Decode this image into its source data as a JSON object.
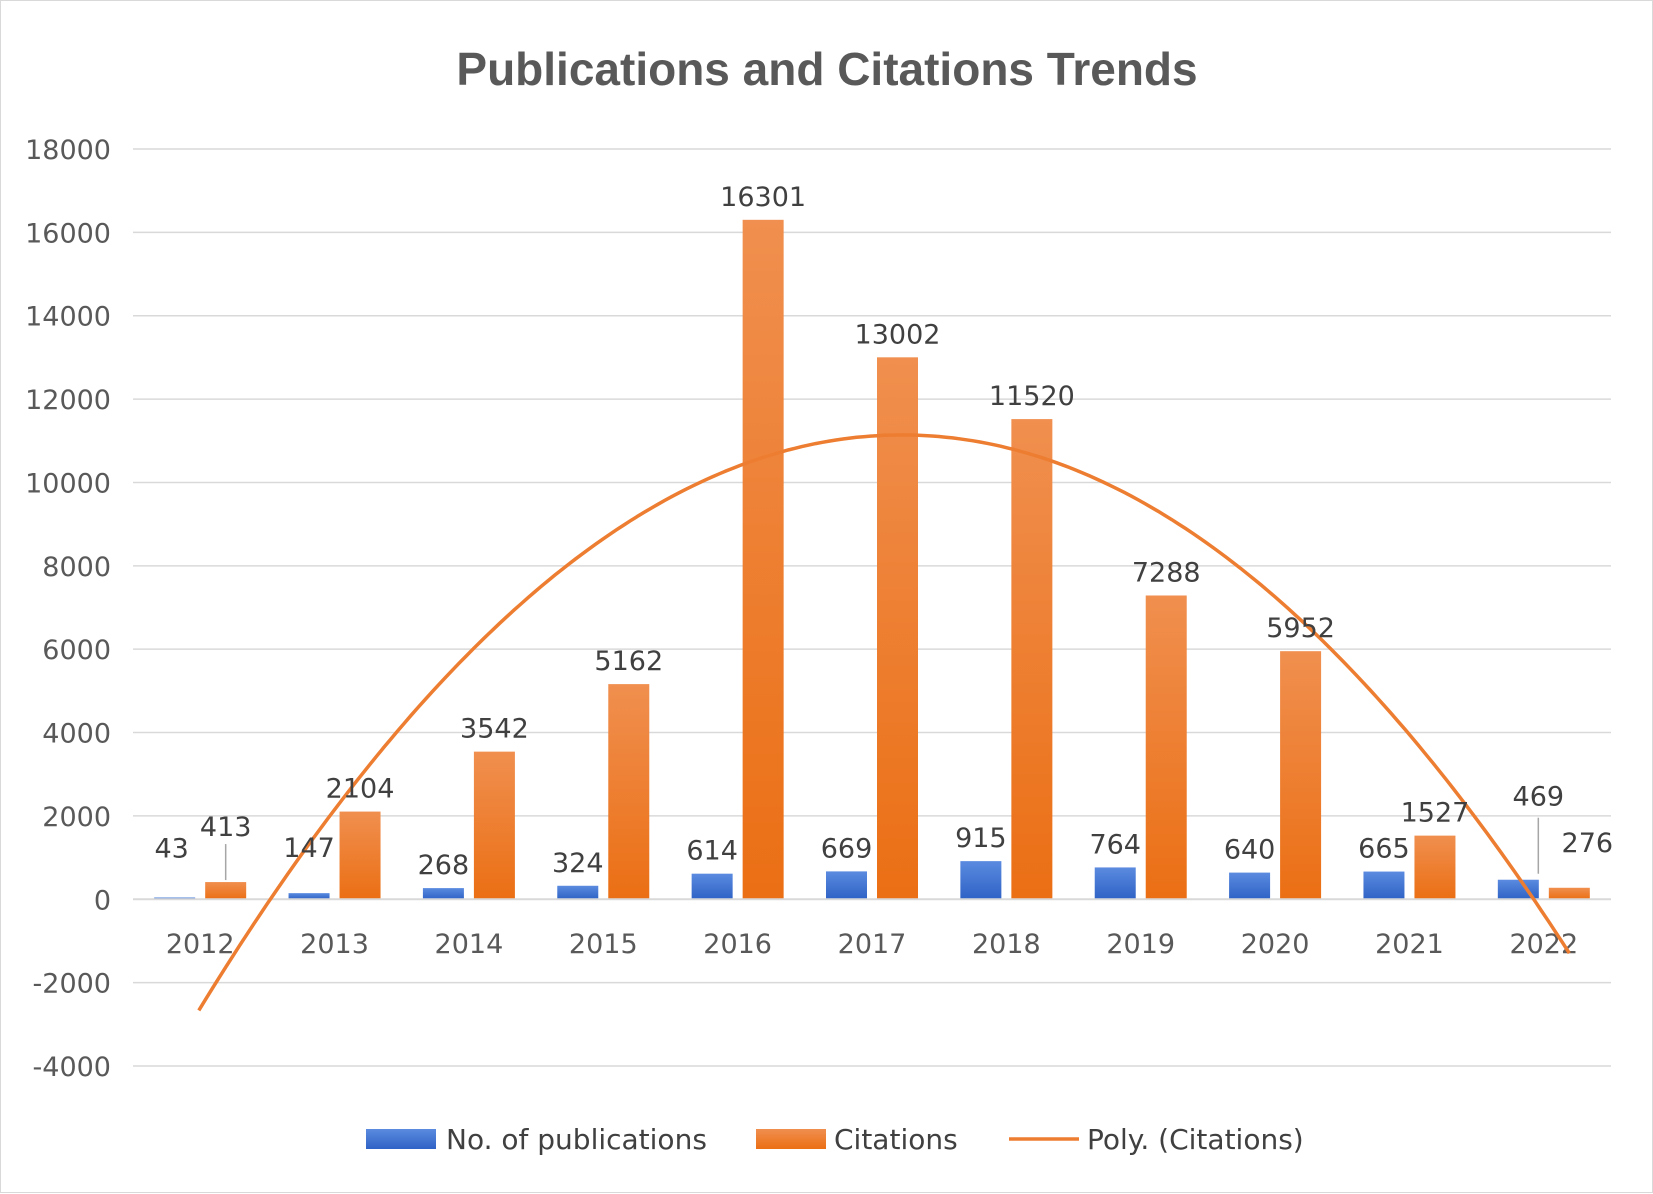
{
  "chart_data": {
    "type": "bar",
    "title": "Publications and Citations Trends",
    "xlabel": "",
    "ylabel": "",
    "categories": [
      "2012",
      "2013",
      "2014",
      "2015",
      "2016",
      "2017",
      "2018",
      "2019",
      "2020",
      "2021",
      "2022"
    ],
    "series": [
      {
        "name": "No. of publications",
        "kind": "bar",
        "color": "#4472C4",
        "values": [
          43,
          147,
          268,
          324,
          614,
          669,
          915,
          764,
          640,
          665,
          469
        ]
      },
      {
        "name": "Citations",
        "kind": "bar",
        "color": "#ED7D31",
        "values": [
          413,
          2104,
          3542,
          5162,
          16301,
          13002,
          11520,
          7288,
          5952,
          1527,
          276
        ]
      },
      {
        "name": "Poly. (Citations)",
        "kind": "trendline",
        "color": "#ED7D31",
        "fit": "polynomial order 2 of Citations"
      }
    ],
    "ylim": [
      -4000,
      18000
    ],
    "yticks": [
      18000,
      16000,
      14000,
      12000,
      10000,
      8000,
      6000,
      4000,
      2000,
      0,
      -2000,
      -4000
    ],
    "grid": true,
    "legend_position": "bottom"
  }
}
